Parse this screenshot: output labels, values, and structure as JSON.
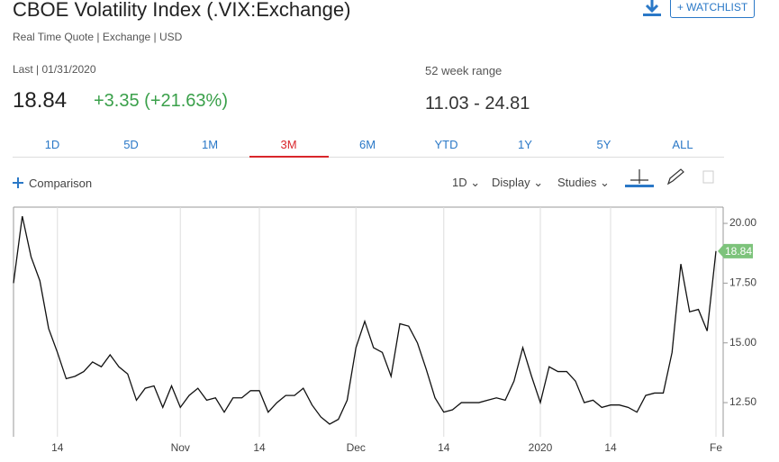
{
  "header": {
    "title": "CBOE Volatility Index (.VIX:Exchange)",
    "subtitle": "Real Time Quote | Exchange | USD"
  },
  "quote": {
    "last_label": "Last | 01/31/2020",
    "last": "18.84",
    "change": "+3.35 (+21.63%)",
    "range_label": "52 week range",
    "range": "11.03 - 24.81"
  },
  "actions": {
    "watchlist": "+ WATCHLIST"
  },
  "tabs": {
    "items": [
      "1D",
      "5D",
      "1M",
      "3M",
      "6M",
      "YTD",
      "1Y",
      "5Y",
      "ALL"
    ],
    "active_index": 3
  },
  "toolbar": {
    "comparison": "Comparison",
    "interval": "1D",
    "display": "Display",
    "studies": "Studies"
  },
  "chart_data": {
    "type": "line",
    "categories": [
      null,
      null,
      null,
      null,
      null,
      "14",
      null,
      null,
      null,
      null,
      null,
      null,
      null,
      null,
      null,
      null,
      null,
      null,
      null,
      "Nov",
      null,
      null,
      null,
      null,
      null,
      null,
      null,
      null,
      "14",
      null,
      null,
      null,
      null,
      null,
      null,
      null,
      null,
      null,
      null,
      "Dec",
      null,
      null,
      null,
      null,
      null,
      null,
      null,
      null,
      null,
      "14",
      null,
      null,
      null,
      null,
      null,
      null,
      null,
      null,
      null,
      null,
      "2020",
      null,
      null,
      null,
      null,
      null,
      null,
      null,
      "14",
      null,
      null,
      null,
      null,
      null,
      null,
      null,
      null,
      null,
      null,
      null,
      "Fe"
    ],
    "series": [
      {
        "name": ".VIX",
        "color": "#111111",
        "values": [
          17.5,
          20.3,
          18.6,
          17.6,
          15.6,
          14.6,
          13.5,
          13.6,
          13.8,
          14.2,
          14.0,
          14.5,
          14.0,
          13.7,
          12.6,
          13.1,
          13.2,
          12.3,
          13.2,
          12.3,
          12.8,
          13.1,
          12.6,
          12.7,
          12.1,
          12.7,
          12.7,
          13.0,
          13.0,
          12.1,
          12.5,
          12.8,
          12.8,
          13.1,
          12.4,
          11.9,
          11.6,
          11.8,
          12.6,
          14.8,
          15.9,
          14.8,
          14.6,
          13.6,
          15.8,
          15.7,
          15.0,
          13.9,
          12.7,
          12.1,
          12.2,
          12.5,
          12.5,
          12.5,
          12.6,
          12.7,
          12.6,
          13.4,
          14.8,
          13.6,
          12.5,
          14.0,
          13.8,
          13.8,
          13.4,
          12.5,
          12.6,
          12.3,
          12.4,
          12.4,
          12.3,
          12.1,
          12.8,
          12.9,
          12.9,
          14.6,
          18.3,
          16.3,
          16.4,
          15.5,
          18.84
        ]
      }
    ],
    "last_value_label": "18.84",
    "last_value_color": "#7dc37b",
    "ylim": [
      11.07,
      20.68
    ],
    "yticks": [
      {
        "value": 12.5,
        "label": "12.50"
      },
      {
        "value": 15,
        "label": "15.00"
      },
      {
        "value": 17.5,
        "label": "17.50"
      },
      {
        "value": 20,
        "label": "20.00"
      }
    ],
    "grid": true
  }
}
